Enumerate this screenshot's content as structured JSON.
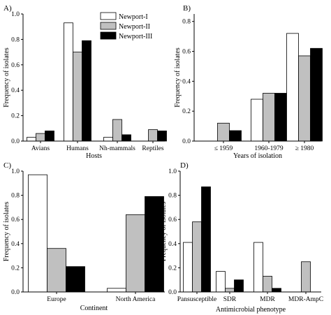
{
  "legend": {
    "series": [
      {
        "name": "Newport-I",
        "color": "#ffffff"
      },
      {
        "name": "Newport-II",
        "color": "#c0c0c0"
      },
      {
        "name": "Newport-III",
        "color": "#000000"
      }
    ]
  },
  "chart_data": [
    {
      "type": "bar",
      "panel": "A)",
      "categories": [
        "Avians",
        "Humans",
        "Nh-mammals",
        "Reptiles"
      ],
      "series": [
        {
          "name": "Newport-I",
          "values": [
            0.03,
            0.93,
            0.03,
            0.0
          ]
        },
        {
          "name": "Newport-II",
          "values": [
            0.06,
            0.7,
            0.17,
            0.09
          ]
        },
        {
          "name": "Newport-III",
          "values": [
            0.08,
            0.79,
            0.05,
            0.08
          ]
        }
      ],
      "xlabel": "Hosts",
      "ylabel": "Frequency of isolates",
      "ylim": [
        0,
        1.0
      ],
      "yticks": [
        "0.0",
        "0.2",
        "0.4",
        "0.6",
        "0.8",
        "1.0"
      ],
      "legend": "top-right"
    },
    {
      "type": "bar",
      "panel": "B)",
      "categories": [
        "≤ 1959",
        "1960-1979",
        "≥ 1980"
      ],
      "series": [
        {
          "name": "Newport-I",
          "values": [
            0.0,
            0.28,
            0.72
          ]
        },
        {
          "name": "Newport-II",
          "values": [
            0.12,
            0.32,
            0.57
          ]
        },
        {
          "name": "Newport-III",
          "values": [
            0.07,
            0.32,
            0.62
          ]
        }
      ],
      "xlabel": "Years of isolation",
      "ylabel": "Frequency of isolates",
      "ylim": [
        0,
        0.85
      ],
      "yticks": [
        "0.0",
        "0.2",
        "0.4",
        "0.6",
        "0.8"
      ]
    },
    {
      "type": "bar",
      "panel": "C)",
      "categories": [
        "Europe",
        "North America"
      ],
      "series": [
        {
          "name": "Newport-I",
          "values": [
            0.97,
            0.03
          ]
        },
        {
          "name": "Newport-II",
          "values": [
            0.36,
            0.64
          ]
        },
        {
          "name": "Newport-III",
          "values": [
            0.21,
            0.79
          ]
        }
      ],
      "xlabel": "Continent",
      "ylabel": "Frequency of isolates",
      "ylim": [
        0,
        1.0
      ],
      "yticks": [
        "0.0",
        "0.2",
        "0.4",
        "0.6",
        "0.8",
        "1.0"
      ]
    },
    {
      "type": "bar",
      "panel": "D)",
      "categories": [
        "Pansusceptible",
        "SDR",
        "MDR",
        "MDR-AmpC"
      ],
      "series": [
        {
          "name": "Newport-I",
          "values": [
            0.41,
            0.17,
            0.41,
            0.0
          ]
        },
        {
          "name": "Newport-II",
          "values": [
            0.58,
            0.03,
            0.13,
            0.25
          ]
        },
        {
          "name": "Newport-III",
          "values": [
            0.87,
            0.1,
            0.03,
            0.0
          ]
        }
      ],
      "xlabel": "Antimicrobial phenotype",
      "ylabel": "Frequency of isolates",
      "ylim": [
        0,
        1.0
      ],
      "yticks": [
        "0.0",
        "0.2",
        "0.4",
        "0.6",
        "0.8",
        "1.0"
      ]
    }
  ]
}
